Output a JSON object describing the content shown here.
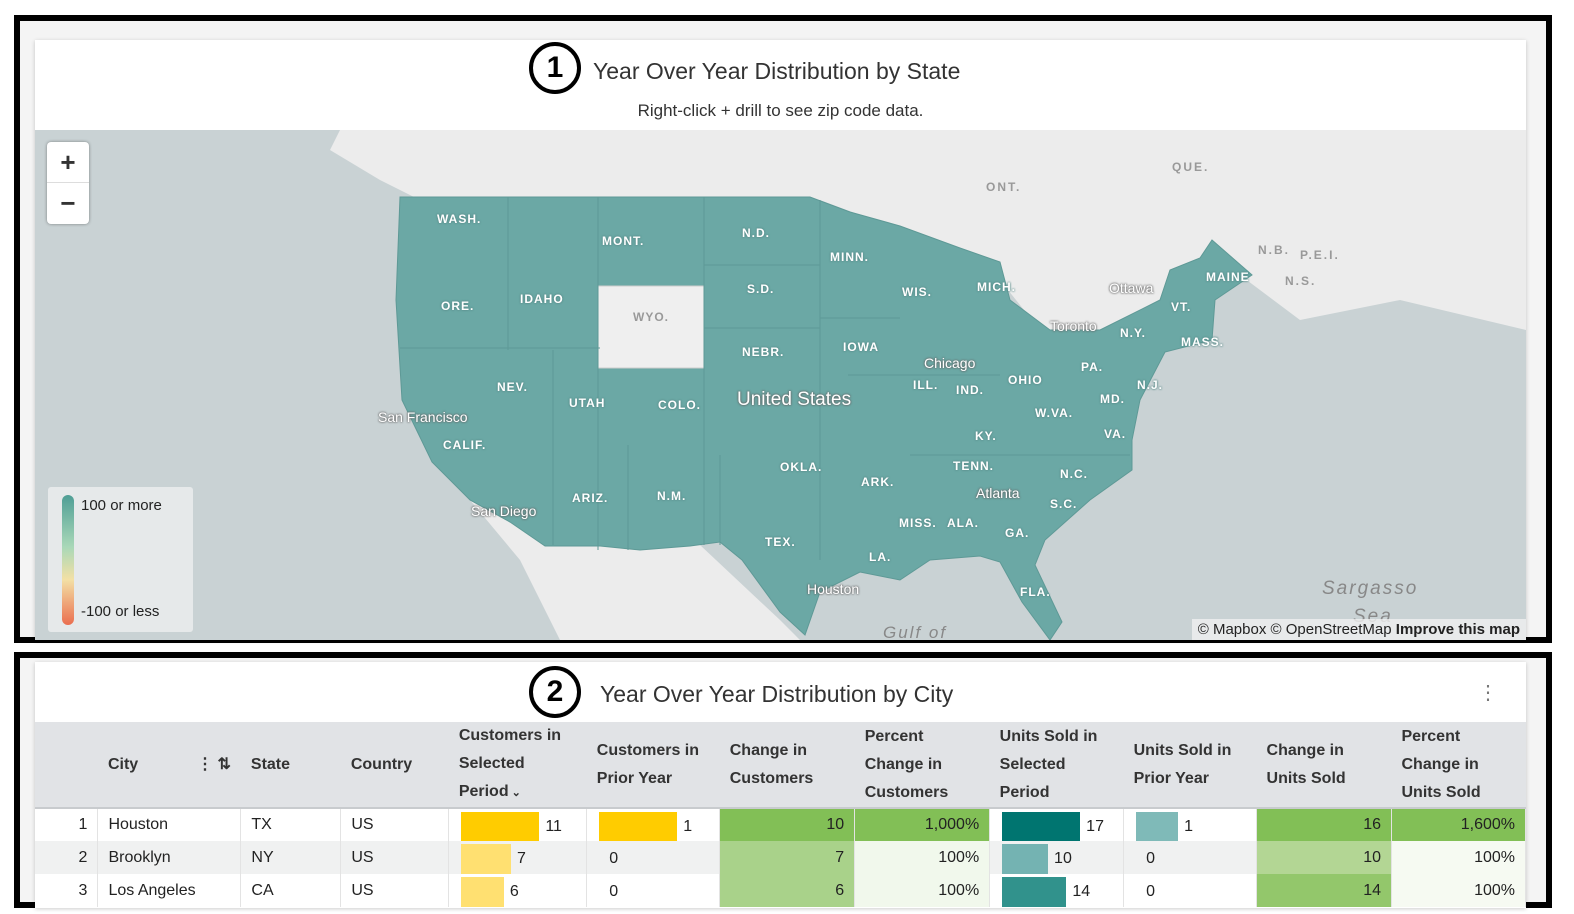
{
  "map_card": {
    "number": "1",
    "title": "Year Over Year Distribution by State",
    "subtitle": "Right-click + drill to see zip code data.",
    "zoom_in": "+",
    "zoom_out": "−",
    "legend": {
      "max": "100 or more",
      "min": "-100 or less"
    },
    "attribution": {
      "mapbox": "© Mapbox",
      "osm": "© OpenStreetMap",
      "improve": "Improve this map"
    },
    "state_labels": [
      "WASH.",
      "MONT.",
      "N.D.",
      "MINN.",
      "ORE.",
      "IDAHO",
      "WYO.",
      "S.D.",
      "WIS.",
      "MICH.",
      "NEBR.",
      "IOWA",
      "NEV.",
      "UTAH",
      "COLO.",
      "ILL.",
      "IND.",
      "OHIO",
      "PA.",
      "N.Y.",
      "MASS.",
      "VT.",
      "MAINE",
      "CALIF.",
      "KY.",
      "W.VA.",
      "VA.",
      "MD.",
      "N.J.",
      "OKLA.",
      "ARK.",
      "TENN.",
      "N.C.",
      "S.C.",
      "ARIZ.",
      "N.M.",
      "TEX.",
      "LA.",
      "MISS.",
      "ALA.",
      "GA.",
      "FLA."
    ],
    "place_labels": [
      "San Francisco",
      "San Diego",
      "Chicago",
      "Toronto",
      "Ottawa",
      "Atlanta",
      "Houston",
      "United States"
    ],
    "geo_labels": [
      "ONT.",
      "QUE.",
      "N.B.",
      "P.E.I.",
      "N.S.",
      "Sargasso",
      "Sea",
      "Gulf of"
    ],
    "colors": {
      "positive": "#6ba8a5",
      "neutral": "#efefef",
      "ocean": "#c9d2d4"
    }
  },
  "table_card": {
    "number": "2",
    "title": "Year Over Year Distribution by City",
    "menu_icon": "kebab-icon",
    "columns": [
      "",
      "City",
      "State",
      "Country",
      "Customers in Selected Period",
      "Customers in Prior Year",
      "Change in Customers",
      "Percent Change in Customers",
      "Units Sold in Selected Period",
      "Units Sold in Prior Year",
      "Change in Units Sold",
      "Percent Change in Units Sold"
    ],
    "rows": [
      {
        "n": "1",
        "city": "Houston",
        "state": "TX",
        "country": "US",
        "cust_sel": "11",
        "cust_prior": "1",
        "chg_cust": "10",
        "pct_cust": "1,000%",
        "units_sel": "17",
        "units_prior": "1",
        "chg_units": "16",
        "pct_units": "1,600%"
      },
      {
        "n": "2",
        "city": "Brooklyn",
        "state": "NY",
        "country": "US",
        "cust_sel": "7",
        "cust_prior": "0",
        "chg_cust": "7",
        "pct_cust": "100%",
        "units_sel": "10",
        "units_prior": "0",
        "chg_units": "10",
        "pct_units": "100%"
      },
      {
        "n": "3",
        "city": "Los Angeles",
        "state": "CA",
        "country": "US",
        "cust_sel": "6",
        "cust_prior": "0",
        "chg_cust": "6",
        "pct_cust": "100%",
        "units_sel": "14",
        "units_prior": "0",
        "chg_units": "14",
        "pct_units": "100%"
      }
    ]
  }
}
